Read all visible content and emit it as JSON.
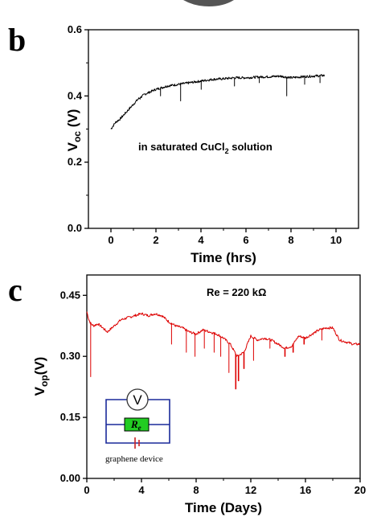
{
  "figure": {
    "top_shape_color": "#555555"
  },
  "chart_data": [
    {
      "panel": "b",
      "type": "line",
      "xlabel": "Time (hrs)",
      "ylabel": {
        "main": "V",
        "sub": "oc",
        "unit": " (V)"
      },
      "xlim": [
        -1,
        11
      ],
      "ylim": [
        0.0,
        0.6
      ],
      "xticks": [
        0,
        2,
        4,
        6,
        8,
        10
      ],
      "xtick_labels": [
        "0",
        "2",
        "4",
        "6",
        "8",
        "10"
      ],
      "yticks": [
        0.0,
        0.2,
        0.4,
        0.6
      ],
      "ytick_labels": [
        "0.0",
        "0.2",
        "0.4",
        "0.6"
      ],
      "grid": false,
      "annotation": {
        "text": "in saturated CuCl",
        "sub": "2",
        "after": " solution"
      },
      "series": [
        {
          "color": "#000000",
          "x": [
            0.0,
            0.2,
            0.4,
            0.6,
            0.8,
            1.0,
            1.2,
            1.5,
            2.0,
            2.5,
            3.0,
            3.5,
            4.0,
            4.5,
            5.0,
            5.5,
            6.0,
            6.5,
            7.0,
            7.5,
            8.0,
            8.5,
            9.0,
            9.5
          ],
          "y": [
            0.3,
            0.32,
            0.33,
            0.345,
            0.36,
            0.375,
            0.39,
            0.405,
            0.42,
            0.43,
            0.435,
            0.44,
            0.445,
            0.45,
            0.452,
            0.455,
            0.455,
            0.457,
            0.458,
            0.46,
            0.455,
            0.458,
            0.46,
            0.462
          ],
          "dips": [
            [
              1.3,
              0.39
            ],
            [
              2.2,
              0.4
            ],
            [
              3.1,
              0.385
            ],
            [
              4.0,
              0.42
            ],
            [
              5.5,
              0.43
            ],
            [
              6.6,
              0.44
            ],
            [
              7.8,
              0.4
            ],
            [
              8.6,
              0.435
            ],
            [
              9.3,
              0.44
            ]
          ]
        }
      ]
    },
    {
      "panel": "c",
      "type": "line",
      "xlabel": "Time (Days)",
      "ylabel": {
        "main": "V",
        "sub": "op",
        "unit": "(V)"
      },
      "xlim": [
        0,
        20
      ],
      "ylim": [
        0.0,
        0.5
      ],
      "xticks": [
        0,
        4,
        8,
        12,
        16,
        20
      ],
      "xtick_labels": [
        "0",
        "4",
        "8",
        "12",
        "16",
        "20"
      ],
      "yticks": [
        0.0,
        0.15,
        0.3,
        0.45
      ],
      "ytick_labels": [
        "0.00",
        "0.15",
        "0.30",
        "0.45"
      ],
      "grid": false,
      "annotation": {
        "text": "Re = 220 kΩ"
      },
      "inset": {
        "meter": "V",
        "resistor": "R",
        "resistor_sub": "e",
        "caption": "graphene device",
        "resistor_color": "#22cc22",
        "wire_color": "#1a2a9a",
        "battery_color": "#cc2222"
      },
      "series": [
        {
          "color": "#dd0000",
          "x": [
            0.0,
            0.15,
            0.3,
            0.5,
            0.8,
            1.0,
            1.5,
            2.0,
            2.5,
            3.0,
            3.5,
            4.0,
            4.5,
            5.0,
            5.5,
            6.0,
            6.5,
            7.0,
            7.5,
            8.0,
            8.5,
            9.0,
            9.5,
            10.0,
            10.5,
            11.0,
            11.5,
            12.0,
            12.5,
            13.0,
            13.5,
            14.0,
            14.5,
            15.0,
            15.5,
            16.0,
            16.5,
            17.0,
            17.5,
            18.0,
            18.5,
            19.0,
            19.5,
            20.0
          ],
          "y": [
            0.41,
            0.39,
            0.38,
            0.375,
            0.38,
            0.375,
            0.36,
            0.375,
            0.39,
            0.395,
            0.4,
            0.405,
            0.4,
            0.405,
            0.4,
            0.385,
            0.375,
            0.37,
            0.36,
            0.355,
            0.365,
            0.36,
            0.355,
            0.345,
            0.33,
            0.3,
            0.31,
            0.35,
            0.34,
            0.345,
            0.34,
            0.33,
            0.32,
            0.325,
            0.35,
            0.345,
            0.355,
            0.365,
            0.37,
            0.37,
            0.34,
            0.335,
            0.33,
            0.33
          ],
          "spikes": [
            [
              0.3,
              0.25
            ],
            [
              6.2,
              0.33
            ],
            [
              7.3,
              0.31
            ],
            [
              7.9,
              0.3
            ],
            [
              8.6,
              0.32
            ],
            [
              9.3,
              0.31
            ],
            [
              9.8,
              0.3
            ],
            [
              10.4,
              0.26
            ],
            [
              10.9,
              0.22
            ],
            [
              11.1,
              0.24
            ],
            [
              11.5,
              0.27
            ],
            [
              12.2,
              0.29
            ],
            [
              13.4,
              0.32
            ],
            [
              14.5,
              0.3
            ],
            [
              15.1,
              0.31
            ],
            [
              15.9,
              0.33
            ],
            [
              17.2,
              0.34
            ]
          ]
        }
      ]
    }
  ]
}
